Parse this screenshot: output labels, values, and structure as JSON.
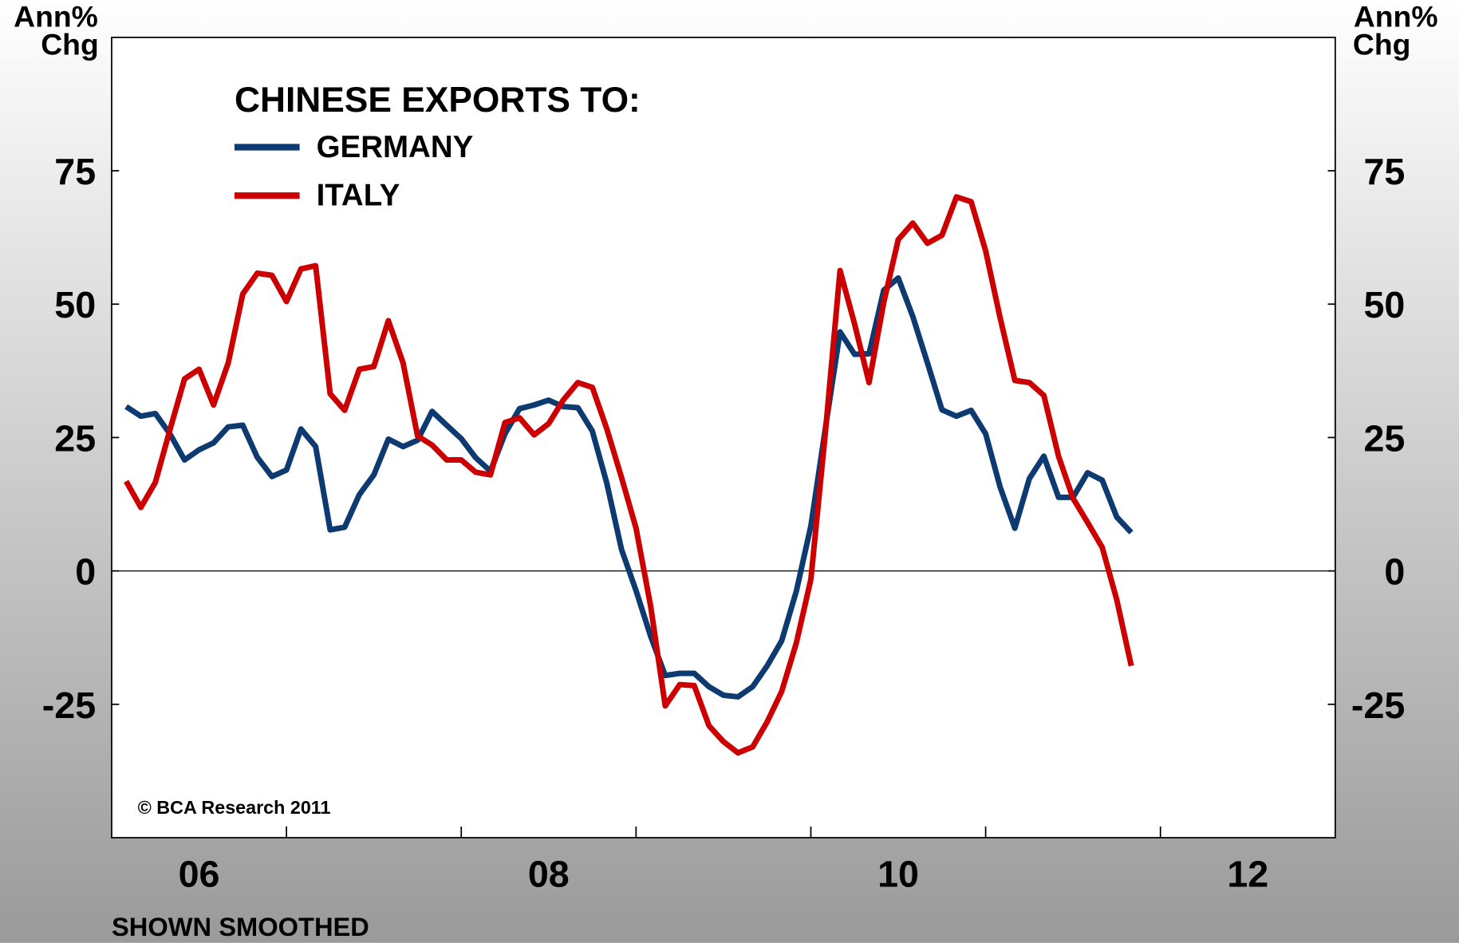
{
  "chart_data": {
    "type": "line",
    "legend_title": "CHINESE EXPORTS TO:",
    "y_label": [
      "Ann%",
      "Chg"
    ],
    "y2_label": [
      "Ann%",
      "Chg"
    ],
    "note": "SHOWN SMOOTHED",
    "copyright": "© BCA Research 2011",
    "x": [
      2006.083,
      2006.167,
      2006.25,
      2006.333,
      2006.417,
      2006.5,
      2006.583,
      2006.667,
      2006.75,
      2006.833,
      2006.917,
      2007,
      2007.083,
      2007.167,
      2007.25,
      2007.333,
      2007.417,
      2007.5,
      2007.583,
      2007.667,
      2007.75,
      2007.833,
      2007.917,
      2008,
      2008.083,
      2008.167,
      2008.25,
      2008.333,
      2008.417,
      2008.5,
      2008.583,
      2008.667,
      2008.75,
      2008.833,
      2008.917,
      2009,
      2009.083,
      2009.167,
      2009.25,
      2009.333,
      2009.417,
      2009.5,
      2009.583,
      2009.667,
      2009.75,
      2009.833,
      2009.917,
      2010,
      2010.083,
      2010.167,
      2010.25,
      2010.333,
      2010.417,
      2010.5,
      2010.583,
      2010.667,
      2010.75,
      2010.833,
      2010.917,
      2011,
      2011.083,
      2011.167,
      2011.25,
      2011.333,
      2011.417,
      2011.5,
      2011.583,
      2011.667,
      2011.75,
      2011.833
    ],
    "series": [
      {
        "name": "GERMANY",
        "color": "#0d3a70",
        "values": [
          30.8,
          29,
          29.5,
          25.7,
          20.8,
          22.7,
          24,
          27,
          27.3,
          21.3,
          17.7,
          18.9,
          26.6,
          23.3,
          7.7,
          8.2,
          14.3,
          18,
          24.7,
          23.3,
          24.5,
          29.9,
          27.3,
          24.8,
          21.2,
          18.7,
          25.7,
          30.4,
          31.1,
          32,
          30.8,
          30.6,
          26.2,
          16.4,
          4,
          -3.7,
          -12.2,
          -19.6,
          -19.2,
          -19.2,
          -21.7,
          -23.3,
          -23.6,
          -21.7,
          -17.8,
          -13.1,
          -3.8,
          8.4,
          26.7,
          44.8,
          40.6,
          40.7,
          52.6,
          54.9,
          47.7,
          39,
          30.2,
          29,
          30.1,
          25.7,
          15.7,
          8,
          17.3,
          21.5,
          13.8,
          13.8,
          18.4,
          17,
          10.1,
          7.2
        ]
      },
      {
        "name": "ITALY",
        "color": "#cc0000",
        "values": [
          16.8,
          11.9,
          16.6,
          26.4,
          36,
          37.8,
          31.1,
          39,
          51.9,
          55.8,
          55.4,
          50.5,
          56.6,
          57.2,
          33.2,
          30.1,
          37.8,
          38.3,
          46.9,
          39,
          25.3,
          23.6,
          20.8,
          20.8,
          18.5,
          18,
          27.8,
          28.7,
          25.5,
          27.6,
          32,
          35.3,
          34.4,
          26.6,
          17.5,
          8,
          -6.5,
          -25.3,
          -21.3,
          -21.5,
          -29,
          -32,
          -34.1,
          -33,
          -28.3,
          -22.6,
          -13.5,
          -1.6,
          25.9,
          56.3,
          46.3,
          35.3,
          50.3,
          62.1,
          65.2,
          61.4,
          62.9,
          70.1,
          69.2,
          60,
          47.4,
          35.7,
          35.3,
          32.9,
          21.5,
          13.6,
          9.1,
          4.4,
          -5.4,
          -17.8
        ]
      }
    ],
    "xlim": [
      2006,
      2013
    ],
    "xticks": [
      {
        "value": 2006.5,
        "label": "06"
      },
      {
        "value": 2008.5,
        "label": "08"
      },
      {
        "value": 2010.5,
        "label": "10"
      },
      {
        "value": 2012.5,
        "label": "12"
      }
    ],
    "xtick_marks": [
      2007,
      2008,
      2009,
      2010,
      2011,
      2012
    ],
    "ylim": [
      -50,
      100
    ],
    "yticks": [
      -25,
      0,
      25,
      50,
      75
    ],
    "y2lim": [
      -50,
      100
    ],
    "y2ticks": [
      -25,
      0,
      25,
      50,
      75
    ],
    "zero_line": true
  }
}
